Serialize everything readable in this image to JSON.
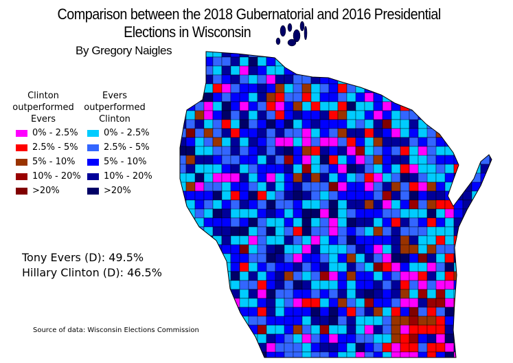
{
  "title_line1": "Comparison between the 2018 Gubernatorial and 2016 Presidential",
  "title_line2": "Elections in Wisconsin",
  "author": "By Gregory Naigles",
  "legend": {
    "clinton": {
      "heading": [
        "Clinton",
        "outperformed",
        "Evers"
      ],
      "items": [
        {
          "label": "0% - 2.5%",
          "color": "#ff00ff"
        },
        {
          "label": "2.5% - 5%",
          "color": "#ff0000"
        },
        {
          "label": "5% - 10%",
          "color": "#993300"
        },
        {
          "label": "10% - 20%",
          "color": "#990000"
        },
        {
          "label": ">20%",
          "color": "#800000"
        }
      ]
    },
    "evers": {
      "heading": [
        "Evers",
        "outperformed",
        "Clinton"
      ],
      "items": [
        {
          "label": "0% - 2.5%",
          "color": "#00ccff"
        },
        {
          "label": "2.5% - 5%",
          "color": "#3366ff"
        },
        {
          "label": "5% - 10%",
          "color": "#0000ff"
        },
        {
          "label": "10% - 20%",
          "color": "#000099"
        },
        {
          "label": ">20%",
          "color": "#000066"
        }
      ]
    }
  },
  "results": {
    "evers": "Tony Evers (D): 49.5%",
    "clinton": "Hillary Clinton (D): 46.5%"
  },
  "source": "Source of data: Wisconsin Elections Commission"
}
